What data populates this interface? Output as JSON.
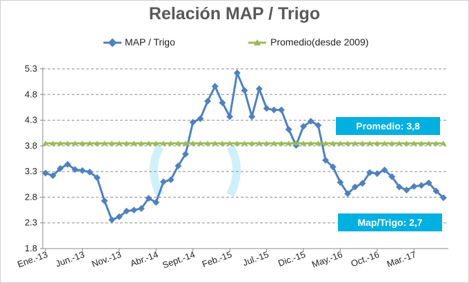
{
  "chart_data": {
    "type": "line",
    "title": "Relación MAP / Trigo",
    "xlabel": "",
    "ylabel": "",
    "ylim": [
      1.8,
      5.3
    ],
    "yticks": [
      "5.3",
      "4.8",
      "4.3",
      "3.8",
      "3.3",
      "2.8",
      "2.3",
      "1.8"
    ],
    "xticks": [
      "Ene.-13",
      "Jun.-13",
      "Nov.-13",
      "Abr.-14",
      "Sept.-14",
      "Feb.-15",
      "Jul.-15",
      "Dic.-15",
      "May.-16",
      "Oct.-16",
      "Mar.-17"
    ],
    "grid": true,
    "legend_position": "top",
    "series": [
      {
        "name": "MAP / Trigo",
        "color": "#4f81bd",
        "marker": "diamond",
        "values": [
          3.27,
          3.22,
          3.36,
          3.44,
          3.34,
          3.32,
          3.29,
          3.18,
          2.73,
          2.36,
          2.42,
          2.53,
          2.55,
          2.58,
          2.78,
          2.7,
          3.1,
          3.14,
          3.41,
          3.64,
          4.26,
          4.33,
          4.67,
          4.96,
          4.64,
          4.37,
          5.22,
          4.88,
          4.37,
          4.91,
          4.53,
          4.5,
          4.5,
          4.12,
          3.81,
          4.18,
          4.28,
          4.2,
          3.52,
          3.39,
          3.09,
          2.87,
          3.0,
          3.07,
          3.28,
          3.26,
          3.33,
          3.2,
          3.0,
          2.94,
          3.01,
          3.03,
          3.08,
          2.92,
          2.79
        ]
      },
      {
        "name": "Promedio(desde 2009)",
        "color": "#9bbb59",
        "marker": "triangle",
        "values": [
          3.85,
          3.85,
          3.85,
          3.85,
          3.85,
          3.85,
          3.85,
          3.85,
          3.85,
          3.85,
          3.85,
          3.85,
          3.85,
          3.85,
          3.85,
          3.85,
          3.85,
          3.85,
          3.85,
          3.85,
          3.85,
          3.85,
          3.85,
          3.85,
          3.85,
          3.85,
          3.85,
          3.85,
          3.85,
          3.85,
          3.85,
          3.85,
          3.85,
          3.85,
          3.85,
          3.85,
          3.85,
          3.85,
          3.85,
          3.85,
          3.85,
          3.85,
          3.85,
          3.85,
          3.85,
          3.85,
          3.85,
          3.85,
          3.85,
          3.85,
          3.85,
          3.85,
          3.85,
          3.85,
          3.85
        ]
      }
    ],
    "annotations": [
      {
        "text": "Promedio: 3,8",
        "color": "#00b0e0"
      },
      {
        "text": "Map/Trigo: 2,7",
        "color": "#00b0e0"
      }
    ]
  }
}
